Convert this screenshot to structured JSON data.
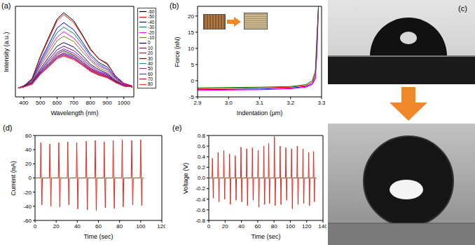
{
  "chart_data": [
    {
      "type": "line",
      "title": "(a)",
      "x_label": "Wavelength (nm)",
      "y_label": "Intensity (a.u.)",
      "tick_labels": "x",
      "xlim": [
        350,
        1060
      ],
      "xticks": [
        400,
        500,
        600,
        700,
        800,
        900,
        1000
      ],
      "ylim": [
        0,
        10
      ],
      "legend": "right",
      "x": [
        370,
        400,
        450,
        500,
        550,
        600,
        640,
        700,
        750,
        800,
        850,
        900,
        950,
        1000,
        1050
      ],
      "series": [
        {
          "name": "-60",
          "color": "#000000",
          "values": [
            1,
            1.2,
            2.0,
            4.5,
            6.6,
            8.6,
            9.3,
            8.4,
            6.9,
            5.3,
            4.2,
            3.7,
            2.3,
            1.5,
            1.2
          ]
        },
        {
          "name": "-50",
          "color": "#ff0000",
          "values": [
            1,
            1.2,
            2.0,
            4.4,
            6.4,
            8.4,
            9.1,
            8.2,
            6.8,
            5.2,
            4.2,
            3.6,
            2.3,
            1.5,
            1.2
          ]
        },
        {
          "name": "-40",
          "color": "#0000ff",
          "values": [
            1,
            1.2,
            1.9,
            4.0,
            5.8,
            7.6,
            8.2,
            7.4,
            6.1,
            4.7,
            3.8,
            3.3,
            2.2,
            1.4,
            1.1
          ]
        },
        {
          "name": "-30",
          "color": "#008080",
          "values": [
            1,
            1.2,
            1.8,
            3.8,
            5.5,
            7.1,
            7.7,
            7.0,
            5.8,
            4.5,
            3.6,
            3.1,
            2.1,
            1.4,
            1.1
          ]
        },
        {
          "name": "-20",
          "color": "#ff00ff",
          "values": [
            1,
            1.2,
            1.7,
            3.6,
            5.2,
            6.6,
            7.2,
            6.5,
            5.4,
            4.2,
            3.4,
            3.0,
            2.0,
            1.4,
            1.1
          ]
        },
        {
          "name": "-10",
          "color": "#808000",
          "values": [
            1,
            1.2,
            1.7,
            3.4,
            4.8,
            6.2,
            6.7,
            6.1,
            5.0,
            4.0,
            3.2,
            2.8,
            1.9,
            1.3,
            1.1
          ]
        },
        {
          "name": "0",
          "color": "#000080",
          "values": [
            1,
            1.2,
            1.6,
            3.1,
            4.4,
            5.6,
            6.0,
            5.5,
            4.6,
            3.6,
            3.0,
            2.6,
            1.8,
            1.3,
            1.1
          ]
        },
        {
          "name": "10",
          "color": "#800080",
          "values": [
            1,
            1.1,
            1.6,
            2.9,
            4.1,
            5.2,
            5.6,
            5.1,
            4.3,
            3.4,
            2.8,
            2.5,
            1.7,
            1.3,
            1.1
          ]
        },
        {
          "name": "20",
          "color": "#8000ff",
          "values": [
            1,
            1.1,
            1.5,
            2.8,
            3.9,
            4.9,
            5.3,
            4.8,
            4.1,
            3.2,
            2.7,
            2.4,
            1.7,
            1.3,
            1.1
          ]
        },
        {
          "name": "30",
          "color": "#800000",
          "values": [
            1,
            1.1,
            1.5,
            2.7,
            3.7,
            4.7,
            5.1,
            4.6,
            3.9,
            3.1,
            2.6,
            2.3,
            1.7,
            1.2,
            1.1
          ]
        },
        {
          "name": "40",
          "color": "#00a0a0",
          "values": [
            1,
            1.1,
            1.5,
            2.6,
            3.6,
            4.5,
            4.9,
            4.5,
            3.8,
            3.0,
            2.5,
            2.2,
            1.6,
            1.2,
            1.1
          ]
        },
        {
          "name": "50",
          "color": "#ff0080",
          "values": [
            1,
            1.1,
            1.5,
            2.6,
            3.5,
            4.5,
            4.8,
            4.4,
            3.7,
            3.0,
            2.5,
            2.2,
            1.6,
            1.2,
            1.1
          ]
        },
        {
          "name": "60",
          "color": "#4040c0",
          "values": [
            1,
            1.1,
            1.4,
            2.6,
            3.5,
            4.4,
            4.7,
            4.3,
            3.6,
            2.9,
            2.4,
            2.2,
            1.6,
            1.2,
            1.1
          ]
        },
        {
          "name": "70",
          "color": "#c00060",
          "values": [
            1,
            1.1,
            1.4,
            2.5,
            3.4,
            4.3,
            4.6,
            4.2,
            3.6,
            2.9,
            2.4,
            2.2,
            1.6,
            1.2,
            1.1
          ]
        },
        {
          "name": "80",
          "color": "#ff3030",
          "values": [
            1,
            1.1,
            1.4,
            2.5,
            3.3,
            4.2,
            4.5,
            4.1,
            3.5,
            2.8,
            2.4,
            2.1,
            1.6,
            1.2,
            1.1
          ]
        }
      ]
    },
    {
      "type": "line",
      "title": "(b)",
      "x_label": "Indentation (μm)",
      "y_label": "Force (nN)",
      "xlim": [
        2.9,
        3.3
      ],
      "xticks": [
        2.9,
        {
          "value": 3,
          "label": "3.0"
        },
        3.1,
        3.2,
        3.3
      ],
      "ylim": [
        -5,
        23
      ],
      "yticks": [
        -5,
        0,
        5,
        10,
        15,
        20
      ],
      "x": [
        2.9,
        3.0,
        3.1,
        3.2,
        3.25,
        3.27,
        3.28,
        3.285,
        3.29
      ],
      "series": [
        {
          "color": "#0000ff",
          "values": [
            -2.8,
            -2.7,
            -2.6,
            -2.3,
            -1.8,
            -1.0,
            1.0,
            10,
            23
          ]
        },
        {
          "color": "#ff0000",
          "values": [
            -2.5,
            -2.4,
            -2.2,
            -2.0,
            -1.5,
            -0.5,
            2,
            12,
            23
          ]
        },
        {
          "color": "#ff00ff",
          "values": [
            -3.0,
            -2.9,
            -2.8,
            -2.5,
            -2.0,
            -1.2,
            0.5,
            8,
            22
          ]
        },
        {
          "color": "#008000",
          "values": [
            -2.2,
            -2.1,
            -2.0,
            -1.8,
            -1.2,
            0,
            3,
            14,
            23
          ]
        }
      ]
    },
    {
      "type": "image",
      "title": "(c)"
    },
    {
      "type": "line",
      "title": "(d)",
      "x_label": "Time (sec)",
      "y_label": "Current (nA)",
      "xlim": [
        0,
        120
      ],
      "xticks": [
        0,
        20,
        40,
        60,
        80,
        100,
        120
      ],
      "ylim": [
        -60,
        60
      ],
      "yticks": [
        -60,
        -40,
        -20,
        0,
        20,
        40,
        60
      ],
      "x": [
        0,
        5,
        5.5,
        6,
        6.5,
        7,
        13.5,
        14,
        14.5,
        15,
        15.5,
        22,
        22.5,
        23,
        23.5,
        24,
        30.5,
        31,
        31.5,
        32,
        32.5,
        39,
        39.5,
        40,
        40.5,
        41,
        48,
        48.5,
        49,
        49.5,
        50,
        56.5,
        57,
        57.5,
        58,
        58.5,
        65,
        65.5,
        66,
        66.5,
        67,
        73.5,
        74,
        74.5,
        75,
        75.5,
        82,
        82.5,
        83,
        83.5,
        84,
        91,
        91.5,
        92,
        92.5,
        93,
        99.5,
        100,
        100.5,
        101,
        101.5,
        103
      ],
      "series": [
        {
          "color": "#e8261e",
          "values": [
            0,
            0,
            50,
            0,
            -38,
            0,
            0,
            48,
            0,
            -40,
            0,
            0,
            50,
            0,
            -41,
            0,
            0,
            51,
            0,
            -38,
            0,
            0,
            50,
            0,
            -44,
            0,
            0,
            52,
            0,
            -45,
            0,
            0,
            53,
            0,
            -46,
            0,
            0,
            51,
            0,
            -42,
            0,
            0,
            53,
            0,
            -43,
            0,
            0,
            54,
            0,
            -41,
            0,
            0,
            53,
            0,
            -38,
            0,
            0,
            54,
            0,
            -39,
            0,
            0
          ]
        }
      ]
    },
    {
      "type": "line",
      "title": "(e)",
      "x_label": "Time (sec)",
      "y_label": "Voltage (V)",
      "xlim": [
        0,
        140
      ],
      "xticks": [
        0,
        20,
        40,
        60,
        80,
        100,
        120,
        140
      ],
      "ylim": [
        -0.8,
        0.8
      ],
      "yticks": [
        -0.8,
        -0.6,
        -0.4,
        -0.2,
        {
          "value": 0,
          "label": "0.0"
        },
        0.2,
        0.4,
        0.6,
        0.8
      ],
      "x": [
        0,
        4,
        4.5,
        5,
        5.5,
        6,
        11,
        11.5,
        12,
        12.5,
        13,
        18,
        18.5,
        19,
        19.5,
        20,
        25,
        25.5,
        26,
        26.5,
        27,
        32,
        32.5,
        33,
        33.5,
        34,
        39,
        39.5,
        40,
        40.5,
        41,
        46,
        46.5,
        47,
        47.5,
        48,
        53,
        53.5,
        54,
        54.5,
        55,
        60,
        60.5,
        61,
        61.5,
        62,
        67,
        67.5,
        68,
        68.5,
        69,
        73,
        73.5,
        74,
        74.5,
        75,
        80,
        80.5,
        81,
        81.5,
        82,
        87,
        87.5,
        88,
        88.5,
        89,
        94,
        94.5,
        95,
        95.5,
        96,
        101,
        101.5,
        102,
        102.5,
        103,
        108,
        108.5,
        109,
        109.5,
        110,
        115,
        115.5,
        116,
        116.5,
        117,
        122,
        122.5,
        123,
        123.5,
        124,
        128,
        128.5,
        129,
        129.5,
        130,
        132
      ],
      "series": [
        {
          "color": "#e8261e",
          "values": [
            0,
            0,
            0.37,
            0,
            -0.38,
            0,
            0,
            0.48,
            0,
            -0.45,
            0,
            0,
            0.52,
            0,
            -0.4,
            0,
            0,
            0.45,
            0,
            -0.5,
            0,
            0,
            0.42,
            0,
            -0.42,
            0,
            0,
            0.58,
            0,
            -0.45,
            0,
            0,
            0.55,
            0,
            -0.52,
            0,
            0,
            0.57,
            0,
            -0.42,
            0,
            0,
            0.52,
            0,
            -0.55,
            0,
            0,
            0.6,
            0,
            -0.5,
            0,
            0,
            0.65,
            0,
            -0.48,
            0,
            0,
            0.78,
            0,
            -0.52,
            0,
            0,
            0.6,
            0,
            -0.5,
            0,
            0,
            0.57,
            0,
            -0.42,
            0,
            0,
            0.55,
            0,
            -0.58,
            0,
            0,
            0.6,
            0,
            -0.5,
            0,
            0,
            0.55,
            0,
            -0.48,
            0,
            0,
            0.48,
            0,
            -0.52,
            0,
            0,
            0.5,
            0,
            -0.45,
            0,
            0
          ]
        }
      ]
    }
  ]
}
